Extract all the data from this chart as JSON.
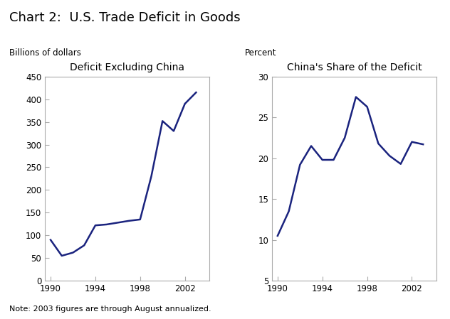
{
  "title": "Chart 2:  U.S. Trade Deficit in Goods",
  "note": "Note: 2003 figures are through August annualized.",
  "left_chart": {
    "subtitle": "Deficit Excluding China",
    "ylabel": "Billions of dollars",
    "ylim": [
      0,
      450
    ],
    "yticks": [
      0,
      50,
      100,
      150,
      200,
      250,
      300,
      350,
      400,
      450
    ],
    "xlim": [
      1989.5,
      2004.2
    ],
    "xticks": [
      1990,
      1994,
      1998,
      2002
    ],
    "years": [
      1990,
      1991,
      1992,
      1993,
      1994,
      1995,
      1996,
      1997,
      1998,
      1999,
      2000,
      2001,
      2002,
      2003
    ],
    "values": [
      90,
      55,
      62,
      78,
      122,
      124,
      128,
      132,
      135,
      230,
      352,
      330,
      390,
      415
    ]
  },
  "right_chart": {
    "subtitle": "China's Share of the Deficit",
    "ylabel": "Percent",
    "ylim": [
      5,
      30
    ],
    "yticks": [
      5,
      10,
      15,
      20,
      25,
      30
    ],
    "xlim": [
      1989.5,
      2004.2
    ],
    "xticks": [
      1990,
      1994,
      1998,
      2002
    ],
    "years": [
      1990,
      1991,
      1992,
      1993,
      1994,
      1995,
      1996,
      1997,
      1998,
      1999,
      2000,
      2001,
      2002,
      2003
    ],
    "values": [
      10.5,
      13.5,
      19.2,
      21.5,
      19.8,
      19.8,
      22.5,
      27.5,
      26.3,
      21.8,
      20.3,
      19.3,
      22.0,
      21.7
    ]
  },
  "line_color": "#1a237e",
  "line_width": 1.8,
  "spine_color": "#aaaaaa",
  "title_fontsize": 13,
  "subtitle_fontsize": 10,
  "label_fontsize": 8.5,
  "tick_fontsize": 8.5,
  "note_fontsize": 8
}
